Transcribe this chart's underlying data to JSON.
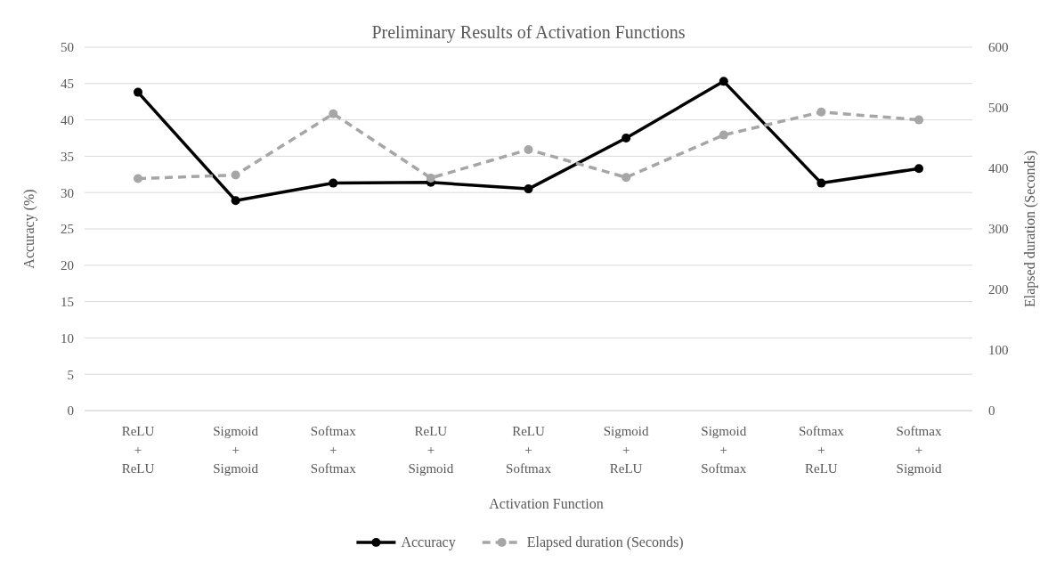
{
  "chart_data": {
    "type": "line",
    "title": "Preliminary Results of Activation Functions",
    "xlabel": "Activation Function",
    "ylabel": "Accuracy (%)",
    "y2label": "Elapsed duration (Seconds)",
    "categories": [
      "ReLU\n+\nReLU",
      "Sigmoid\n+\nSigmoid",
      "Softmax\n+\nSoftmax",
      "ReLU\n+\nSigmoid",
      "ReLU\n+\nSoftmax",
      "Sigmoid\n+\nReLU",
      "Sigmoid\n+\nSoftmax",
      "Softmax\n+\nReLU",
      "Softmax\n+\nSigmoid"
    ],
    "series": [
      {
        "name": "Accuracy",
        "color": "#000000",
        "line_style": "solid",
        "values": [
          43.8,
          28.9,
          31.3,
          31.4,
          30.5,
          37.5,
          45.3,
          31.3,
          33.3
        ]
      },
      {
        "name": "Elapsed duration (Seconds)",
        "color": "#a6a6a6",
        "line_style": "dashed",
        "axis": "y2",
        "values": [
          383,
          389,
          490,
          384,
          431,
          385,
          455,
          493,
          480
        ]
      }
    ],
    "ylim": [
      0,
      50
    ],
    "yticks": [
      0,
      5,
      10,
      15,
      20,
      25,
      30,
      35,
      40,
      45,
      50
    ],
    "y2lim": [
      0,
      600
    ],
    "y2ticks": [
      0,
      100,
      200,
      300,
      400,
      500,
      600
    ],
    "grid": "y",
    "legend": "bottom",
    "marker": "circle"
  }
}
